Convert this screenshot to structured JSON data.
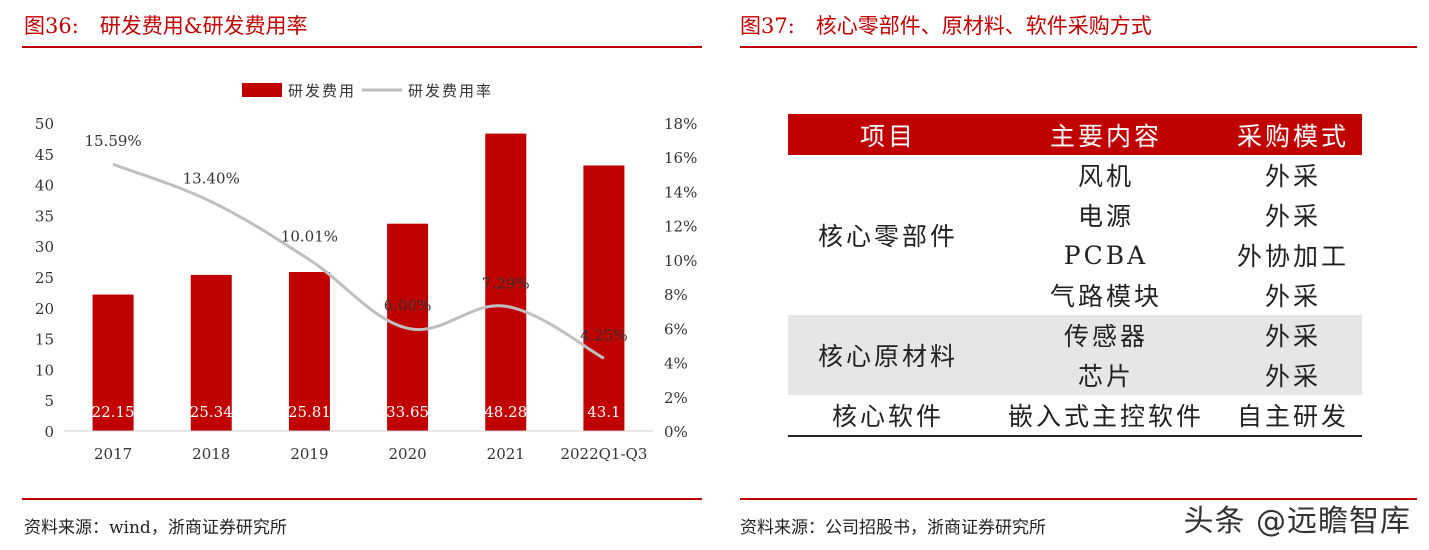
{
  "left": {
    "title": "图36:　研发费用&研发费用率",
    "source": "资料来源：wind，浙商证券研究所"
  },
  "right": {
    "title": "图37:　核心零部件、原材料、软件采购方式",
    "source": "资料来源：公司招股书，浙商证券研究所",
    "table": {
      "headers": [
        "项目",
        "主要内容",
        "采购模式"
      ],
      "groups": [
        {
          "category": "核心零部件",
          "shade": false,
          "rows": [
            [
              "风机",
              "外采"
            ],
            [
              "电源",
              "外采"
            ],
            [
              "PCBA",
              "外协加工"
            ],
            [
              "气路模块",
              "外采"
            ]
          ]
        },
        {
          "category": "核心原材料",
          "shade": true,
          "rows": [
            [
              "传感器",
              "外采"
            ],
            [
              "芯片",
              "外采"
            ]
          ]
        },
        {
          "category": "核心软件",
          "shade": false,
          "rows": [
            [
              "嵌入式主控软件",
              "自主研发"
            ]
          ]
        }
      ]
    }
  },
  "watermark": "头条 @远瞻智库",
  "colors": {
    "accent": "#c00000",
    "bar": "#c00000",
    "line": "#bfbfbf",
    "shade": "#e6e6e6"
  },
  "chart_data": {
    "type": "bar",
    "title": "",
    "categories": [
      "2017",
      "2018",
      "2019",
      "2020",
      "2021",
      "2022Q1-Q3"
    ],
    "series": [
      {
        "name": "研发费用",
        "type": "bar",
        "axis": "left",
        "values": [
          22.15,
          25.34,
          25.81,
          33.65,
          48.28,
          43.1
        ],
        "labels": [
          "22.15",
          "25.34",
          "25.81",
          "33.65",
          "48.28",
          "43.1"
        ]
      },
      {
        "name": "研发费用率",
        "type": "line",
        "axis": "right",
        "values": [
          15.59,
          13.4,
          10.01,
          6.0,
          7.29,
          4.25
        ],
        "labels": [
          "15.59%",
          "13.40%",
          "10.01%",
          "6.00%",
          "7.29%",
          "4.25%"
        ]
      }
    ],
    "y_left": {
      "min": 0,
      "max": 50,
      "ticks": [
        "0",
        "5",
        "10",
        "15",
        "20",
        "25",
        "30",
        "35",
        "40",
        "45",
        "50"
      ]
    },
    "y_right": {
      "min": 0,
      "max": 18,
      "ticks": [
        "0%",
        "2%",
        "4%",
        "6%",
        "8%",
        "10%",
        "12%",
        "14%",
        "16%",
        "18%"
      ]
    },
    "legend": "top",
    "grid": false
  }
}
